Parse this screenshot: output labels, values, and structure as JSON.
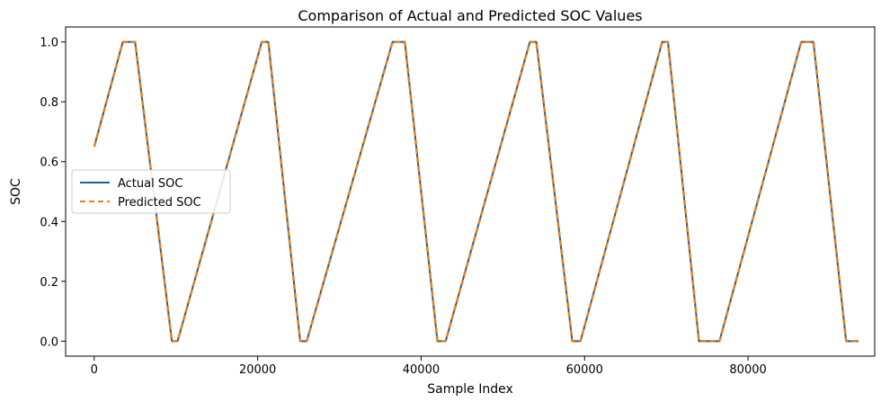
{
  "chart_data": {
    "type": "line",
    "title": "Comparison of Actual and Predicted SOC Values",
    "xlabel": "Sample Index",
    "ylabel": "SOC",
    "xlim": [
      -3500,
      95500
    ],
    "ylim": [
      -0.05,
      1.05
    ],
    "xticks": [
      0,
      20000,
      40000,
      60000,
      80000
    ],
    "xtick_labels": [
      "0",
      "20000",
      "40000",
      "60000",
      "80000"
    ],
    "yticks": [
      0.0,
      0.2,
      0.4,
      0.6,
      0.8,
      1.0
    ],
    "ytick_labels": [
      "0.0",
      "0.2",
      "0.4",
      "0.6",
      "0.8",
      "1.0"
    ],
    "grid": false,
    "legend_position": "center-left",
    "series": [
      {
        "name": "Actual SOC",
        "color": "#1f5f99",
        "style": "solid",
        "x": [
          0,
          3500,
          5000,
          9500,
          10200,
          20500,
          21300,
          25200,
          26000,
          36500,
          38000,
          42000,
          43000,
          53300,
          54100,
          58500,
          59500,
          69500,
          70200,
          74000,
          76500,
          86500,
          88000,
          92000,
          93500
        ],
        "y": [
          0.65,
          1.0,
          1.0,
          0.0,
          0.0,
          1.0,
          1.0,
          0.0,
          0.0,
          1.0,
          1.0,
          0.0,
          0.0,
          1.0,
          1.0,
          0.0,
          0.0,
          1.0,
          1.0,
          0.0,
          0.0,
          1.0,
          1.0,
          0.0,
          0.0
        ]
      },
      {
        "name": "Predicted SOC",
        "color": "#f07f10",
        "style": "dashed",
        "x": [
          0,
          3500,
          5000,
          9500,
          10200,
          20500,
          21300,
          25200,
          26000,
          36500,
          38000,
          42000,
          43000,
          53300,
          54100,
          58500,
          59500,
          69500,
          70200,
          74000,
          76500,
          86500,
          88000,
          92000,
          93500
        ],
        "y": [
          0.65,
          1.0,
          1.0,
          0.0,
          0.0,
          1.0,
          1.0,
          0.0,
          0.0,
          1.0,
          1.0,
          0.0,
          0.0,
          1.0,
          1.0,
          0.0,
          0.0,
          1.0,
          1.0,
          0.0,
          0.0,
          1.0,
          1.0,
          0.0,
          0.0
        ]
      }
    ]
  }
}
